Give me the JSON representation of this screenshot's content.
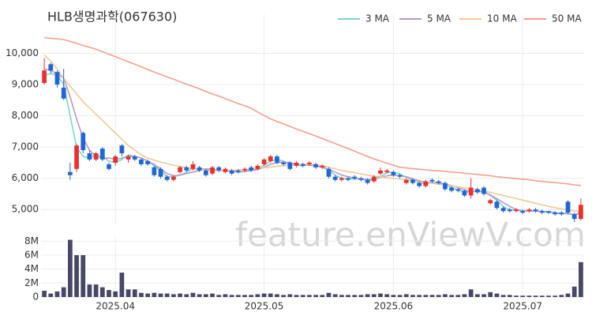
{
  "chart_data": {
    "type": "candlestick",
    "title": "HLB생명과학(067630)",
    "watermark": "feature.enViewV.com",
    "up_color": "#e8312f",
    "down_color": "#1f66d6",
    "categories": [
      null,
      null,
      null,
      null,
      null,
      null,
      null,
      null,
      null,
      null,
      null,
      "2025.04",
      null,
      null,
      null,
      null,
      null,
      null,
      null,
      null,
      null,
      null,
      null,
      null,
      null,
      null,
      null,
      null,
      null,
      null,
      null,
      null,
      null,
      null,
      "2025.05",
      null,
      null,
      null,
      null,
      null,
      null,
      null,
      null,
      null,
      null,
      null,
      null,
      null,
      null,
      null,
      null,
      null,
      null,
      null,
      "2025.06",
      null,
      null,
      null,
      null,
      null,
      null,
      null,
      null,
      null,
      null,
      null,
      null,
      null,
      null,
      null,
      null,
      null,
      null,
      null,
      "2025.07",
      null,
      null,
      null,
      null,
      null,
      null,
      null,
      null,
      null
    ],
    "open": [
      9050,
      9650,
      9400,
      8900,
      6200,
      6300,
      7450,
      6800,
      6600,
      6950,
      6450,
      6500,
      7050,
      6600,
      6700,
      6600,
      6550,
      6350,
      6300,
      6050,
      5950,
      6200,
      6350,
      6300,
      6350,
      6250,
      6150,
      6350,
      6200,
      6250,
      6250,
      6250,
      6350,
      6300,
      6450,
      6550,
      6700,
      6500,
      6500,
      6400,
      6450,
      6450,
      6450,
      6350,
      6300,
      6050,
      5950,
      6000,
      6050,
      6000,
      5950,
      5900,
      6150,
      6200,
      6200,
      6100,
      5850,
      5950,
      5850,
      5750,
      5950,
      5900,
      5850,
      5700,
      5650,
      5600,
      5450,
      5650,
      5700,
      5200,
      5250,
      5050,
      5000,
      4950,
      4950,
      4950,
      5000,
      4950,
      4950,
      4900,
      4900,
      5250,
      4850,
      4700
    ],
    "high": [
      9850,
      9700,
      9450,
      9500,
      6500,
      7100,
      7500,
      6900,
      6850,
      7000,
      6500,
      6750,
      7100,
      6750,
      6750,
      6650,
      6600,
      6400,
      6350,
      6100,
      6100,
      6400,
      6400,
      6550,
      6400,
      6300,
      6400,
      6400,
      6350,
      6300,
      6300,
      6350,
      6400,
      6450,
      6650,
      6750,
      6750,
      6550,
      6550,
      6550,
      6500,
      6550,
      6500,
      6450,
      6350,
      6100,
      6050,
      6050,
      6100,
      6050,
      6000,
      6100,
      6350,
      6300,
      6250,
      6150,
      6000,
      6000,
      5900,
      5950,
      6000,
      5950,
      5900,
      5750,
      5700,
      5650,
      6000,
      5700,
      5750,
      5350,
      5300,
      5100,
      5050,
      5050,
      5000,
      5050,
      5050,
      5000,
      4950,
      4950,
      4950,
      5300,
      4900,
      5350
    ],
    "low": [
      9000,
      9350,
      8900,
      8500,
      5950,
      6200,
      6800,
      6550,
      6550,
      6550,
      6250,
      6400,
      6700,
      6500,
      6550,
      6400,
      6400,
      6050,
      6000,
      5900,
      5900,
      6150,
      6200,
      6250,
      6200,
      6050,
      6100,
      6200,
      6150,
      6100,
      6150,
      6200,
      6200,
      6250,
      6400,
      6500,
      6450,
      6400,
      6250,
      6350,
      6350,
      6400,
      6300,
      6300,
      6000,
      5900,
      5900,
      5900,
      5950,
      5900,
      5800,
      5850,
      6100,
      6150,
      6050,
      6000,
      5800,
      5800,
      5700,
      5700,
      5850,
      5800,
      5600,
      5550,
      5550,
      5400,
      5350,
      5500,
      5450,
      5150,
      5000,
      4900,
      4900,
      4900,
      4850,
      4900,
      4900,
      4850,
      4850,
      4800,
      4800,
      4850,
      4600,
      4650
    ],
    "close": [
      9450,
      9450,
      9000,
      8550,
      6100,
      7050,
      6900,
      6600,
      6800,
      6600,
      6300,
      6700,
      6800,
      6700,
      6600,
      6450,
      6450,
      6100,
      6050,
      5950,
      6050,
      6350,
      6250,
      6450,
      6250,
      6100,
      6350,
      6250,
      6300,
      6150,
      6200,
      6300,
      6250,
      6400,
      6600,
      6700,
      6500,
      6450,
      6300,
      6500,
      6400,
      6500,
      6350,
      6400,
      6050,
      5950,
      6000,
      5950,
      6000,
      5950,
      5850,
      6050,
      6250,
      6250,
      6100,
      6050,
      5950,
      5850,
      5750,
      5900,
      5900,
      5850,
      5650,
      5600,
      5600,
      5450,
      5700,
      5550,
      5500,
      5300,
      5050,
      4950,
      4950,
      5000,
      4900,
      5000,
      4950,
      4900,
      4900,
      4850,
      4850,
      4900,
      4700,
      5150
    ],
    "ylim": [
      4500,
      11250
    ],
    "yticks": [
      {
        "value": 5000,
        "label": "5,000"
      },
      {
        "value": 6000,
        "label": "6,000"
      },
      {
        "value": 7000,
        "label": "7,000"
      },
      {
        "value": 8000,
        "label": "8,000"
      },
      {
        "value": 9000,
        "label": "9,000"
      },
      {
        "value": 10000,
        "label": "10,000"
      }
    ],
    "series": [
      {
        "name": "3 MA",
        "color": "#7fd6c8",
        "values": [
          9300,
          9350,
          9300,
          9000,
          8000,
          7000,
          6700,
          6650,
          6750,
          6700,
          6550,
          6500,
          6600,
          6750,
          6700,
          6650,
          6550,
          6400,
          6250,
          6050,
          6050,
          6100,
          6200,
          6300,
          6300,
          6300,
          6250,
          6250,
          6250,
          6220,
          6200,
          6220,
          6270,
          6300,
          6420,
          6550,
          6600,
          6550,
          6430,
          6420,
          6400,
          6450,
          6420,
          6400,
          6250,
          6100,
          6000,
          5980,
          5980,
          5980,
          5930,
          5950,
          6050,
          6180,
          6200,
          6130,
          6030,
          5950,
          5850,
          5830,
          5850,
          5880,
          5800,
          5700,
          5620,
          5550,
          5580,
          5580,
          5580,
          5450,
          5300,
          5100,
          4980,
          4970,
          4950,
          4970,
          4950,
          4930,
          4920,
          4880,
          4870,
          4870,
          4820,
          4920
        ]
      },
      {
        "name": "5 MA",
        "color": "#b39bc9",
        "values": [
          9500,
          9450,
          9350,
          9200,
          8600,
          7900,
          7300,
          6900,
          6700,
          6650,
          6650,
          6600,
          6650,
          6700,
          6700,
          6650,
          6550,
          6450,
          6300,
          6150,
          6080,
          6100,
          6150,
          6200,
          6250,
          6300,
          6300,
          6250,
          6250,
          6230,
          6200,
          6220,
          6250,
          6280,
          6350,
          6450,
          6500,
          6520,
          6500,
          6450,
          6420,
          6420,
          6400,
          6350,
          6280,
          6200,
          6100,
          6050,
          6000,
          5980,
          5960,
          5980,
          6030,
          6080,
          6100,
          6080,
          6050,
          5980,
          5920,
          5880,
          5860,
          5850,
          5820,
          5760,
          5700,
          5620,
          5580,
          5580,
          5560,
          5470,
          5350,
          5220,
          5100,
          5000,
          4960,
          4950,
          4950,
          4940,
          4920,
          4900,
          4880,
          4870,
          4840,
          4870
        ]
      },
      {
        "name": "10 MA",
        "color": "#f1c993",
        "values": [
          9950,
          9750,
          9500,
          9200,
          8950,
          8700,
          8450,
          8250,
          8050,
          7850,
          7650,
          7450,
          7250,
          7050,
          6900,
          6750,
          6650,
          6580,
          6520,
          6470,
          6420,
          6380,
          6340,
          6300,
          6280,
          6260,
          6250,
          6250,
          6250,
          6250,
          6260,
          6280,
          6300,
          6320,
          6340,
          6360,
          6380,
          6400,
          6420,
          6440,
          6450,
          6450,
          6440,
          6400,
          6350,
          6300,
          6250,
          6210,
          6180,
          6140,
          6100,
          6070,
          6050,
          6020,
          6000,
          5980,
          5950,
          5920,
          5890,
          5860,
          5840,
          5810,
          5790,
          5760,
          5720,
          5690,
          5660,
          5630,
          5590,
          5550,
          5500,
          5450,
          5400,
          5350,
          5300,
          5250,
          5200,
          5150,
          5100,
          5060,
          5020,
          4990,
          4950,
          4930
        ]
      },
      {
        "name": "50 MA",
        "color": "#f4a08e",
        "values": [
          10500,
          10480,
          10460,
          10440,
          10380,
          10320,
          10250,
          10190,
          10130,
          10050,
          9970,
          9890,
          9810,
          9730,
          9650,
          9570,
          9480,
          9400,
          9320,
          9240,
          9170,
          9090,
          9010,
          8940,
          8860,
          8780,
          8700,
          8630,
          8550,
          8470,
          8390,
          8320,
          8240,
          8120,
          8010,
          7900,
          7820,
          7740,
          7660,
          7580,
          7500,
          7430,
          7350,
          7270,
          7190,
          7110,
          7030,
          6950,
          6870,
          6780,
          6700,
          6620,
          6550,
          6480,
          6420,
          6350,
          6330,
          6310,
          6290,
          6270,
          6250,
          6240,
          6220,
          6200,
          6180,
          6160,
          6140,
          6120,
          6100,
          6080,
          6050,
          6030,
          6010,
          5990,
          5970,
          5950,
          5920,
          5900,
          5880,
          5860,
          5840,
          5820,
          5790,
          5770
        ]
      }
    ],
    "volume": {
      "color": "#474766",
      "values": [
        900000,
        500000,
        800000,
        1400000,
        8200000,
        6000000,
        6000000,
        1800000,
        1800000,
        1400000,
        1000000,
        800000,
        3500000,
        1100000,
        1100000,
        600000,
        500000,
        600000,
        500000,
        500000,
        400000,
        500000,
        400000,
        600000,
        400000,
        400000,
        500000,
        300000,
        400000,
        300000,
        300000,
        300000,
        300000,
        400000,
        500000,
        500000,
        400000,
        300000,
        400000,
        300000,
        300000,
        300000,
        300000,
        300000,
        600000,
        400000,
        300000,
        300000,
        300000,
        300000,
        400000,
        400000,
        500000,
        400000,
        300000,
        300000,
        400000,
        300000,
        300000,
        300000,
        300000,
        300000,
        400000,
        300000,
        300000,
        400000,
        1100000,
        400000,
        400000,
        700000,
        500000,
        300000,
        300000,
        200000,
        200000,
        200000,
        200000,
        200000,
        200000,
        200000,
        300000,
        500000,
        1500000,
        5000000
      ],
      "ylim": [
        0,
        8600000
      ],
      "yticks": [
        0,
        {
          "value": 2000000,
          "label": "2M"
        },
        {
          "value": 4000000,
          "label": "4M"
        },
        {
          "value": 6000000,
          "label": "6M"
        },
        {
          "value": 8000000,
          "label": "8M"
        }
      ]
    }
  }
}
